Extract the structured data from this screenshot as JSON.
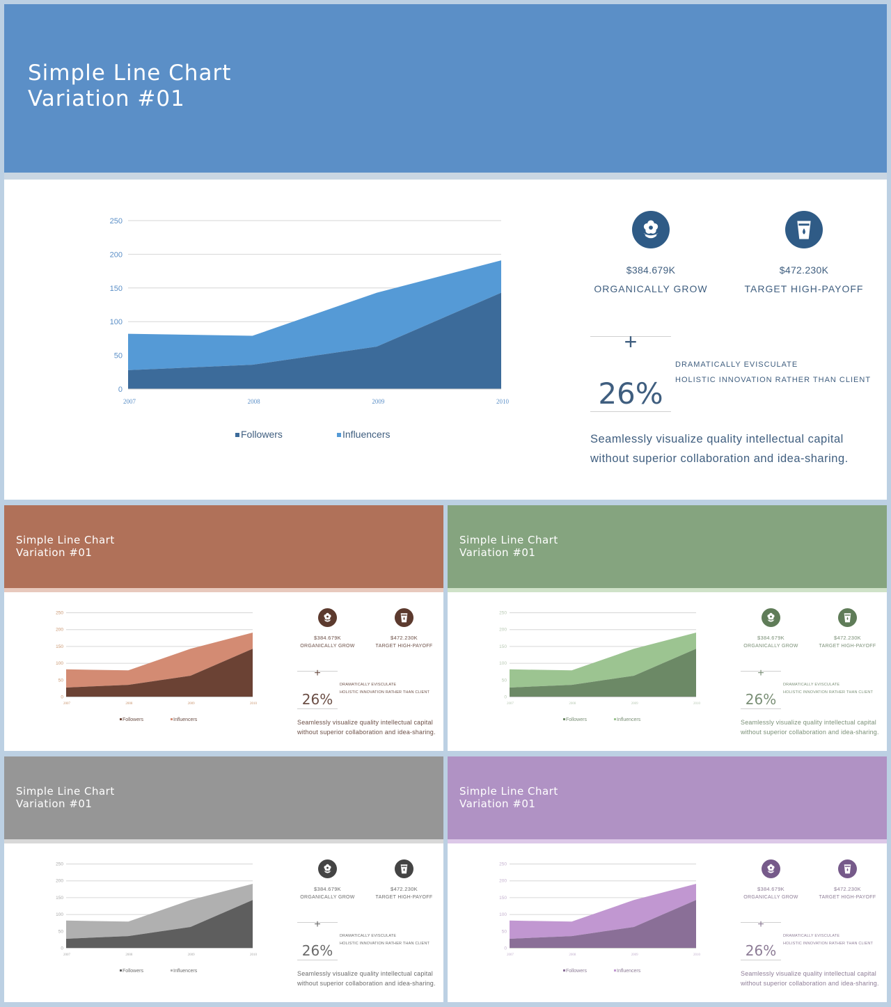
{
  "slides": [
    {
      "id": "main",
      "title_line1": "Simple Line Chart",
      "title_line2": "Variation #01",
      "colors": {
        "header": "#5b8fc7",
        "strip": "#c9d6e2",
        "dark": "#3c6b9a",
        "light": "#559ad6",
        "icon": "#2f5b86",
        "text": "#3f5e7f",
        "axis": "#5b8fc7"
      },
      "stat1_value": "$384.679K",
      "stat1_label": "ORGANICALLY GROW",
      "stat2_value": "$472.230K",
      "stat2_label": "TARGET HIGH-PAYOFF",
      "plus": "+",
      "percent": "26%",
      "sub1": "DRAMATICALLY EVISCULATE",
      "sub2": "HOLISTIC INNOVATION RATHER THAN CLIENT",
      "desc1": "Seamlessly visualize quality intellectual capital",
      "desc2": "without superior collaboration and idea-sharing.",
      "icons": [
        "flower-icon",
        "cup-icon"
      ]
    },
    {
      "id": "terracotta",
      "title_line1": "Simple Line Chart",
      "title_line2": "Variation #01",
      "colors": {
        "header": "#b07159",
        "strip": "#e8c9bd",
        "dark": "#6b4234",
        "light": "#d38b73",
        "icon": "#5c3a2e",
        "text": "#6b4e45",
        "axis": "#c9946d"
      },
      "stat1_value": "$384.679K",
      "stat1_label": "ORGANICALLY GROW",
      "stat2_value": "$472.230K",
      "stat2_label": "TARGET HIGH-PAYOFF",
      "plus": "+",
      "percent": "26%",
      "sub1": "DRAMATICALLY EVISCULATE",
      "sub2": "HOLISTIC INNOVATION RATHER THAN CLIENT",
      "desc1": "Seamlessly visualize quality intellectual capital",
      "desc2": "without superior collaboration and idea-sharing.",
      "icons": [
        "flower-icon",
        "cup-icon"
      ]
    },
    {
      "id": "green",
      "title_line1": "Simple Line Chart",
      "title_line2": "Variation #01",
      "colors": {
        "header": "#85a47f",
        "strip": "#cfe2c8",
        "dark": "#6c8966",
        "light": "#9cc491",
        "icon": "#5f7c58",
        "text": "#7a8f76",
        "axis": "#b8c9b3"
      },
      "stat1_value": "$384.679K",
      "stat1_label": "ORGANICALLY GROW",
      "stat2_value": "$472.230K",
      "stat2_label": "TARGET HIGH-PAYOFF",
      "plus": "+",
      "percent": "26%",
      "sub1": "DRAMATICALLY EVISCULATE",
      "sub2": "HOLISTIC INNOVATION RATHER THAN CLIENT",
      "desc1": "Seamlessly visualize quality intellectual capital",
      "desc2": "without superior collaboration and idea-sharing.",
      "icons": [
        "flower-icon",
        "cup-icon"
      ]
    },
    {
      "id": "gray",
      "title_line1": "Simple Line Chart",
      "title_line2": "Variation #01",
      "colors": {
        "header": "#969696",
        "strip": "#d8d8d8",
        "dark": "#5e5e5e",
        "light": "#b0b0b0",
        "icon": "#444444",
        "text": "#6a6a6a",
        "axis": "#a8a8a8"
      },
      "stat1_value": "$384.679K",
      "stat1_label": "ORGANICALLY GROW",
      "stat2_value": "$472.230K",
      "stat2_label": "TARGET HIGH-PAYOFF",
      "plus": "+",
      "percent": "26%",
      "sub1": "DRAMATICALLY EVISCULATE",
      "sub2": "HOLISTIC INNOVATION RATHER THAN CLIENT",
      "desc1": "Seamlessly visualize quality intellectual capital",
      "desc2": "without superior collaboration and idea-sharing.",
      "icons": [
        "flower-icon",
        "cup-icon"
      ]
    },
    {
      "id": "purple",
      "title_line1": "Simple Line Chart",
      "title_line2": "Variation #01",
      "colors": {
        "header": "#b092c4",
        "strip": "#dcc8e8",
        "dark": "#8a6f97",
        "light": "#c197d1",
        "icon": "#765a8a",
        "text": "#8d7c96",
        "axis": "#c4b1cf"
      },
      "stat1_value": "$384.679K",
      "stat1_label": "ORGANICALLY GROW",
      "stat2_value": "$472.230K",
      "stat2_label": "TARGET HIGH-PAYOFF",
      "plus": "+",
      "percent": "26%",
      "sub1": "DRAMATICALLY EVISCULATE",
      "sub2": "HOLISTIC INNOVATION RATHER THAN CLIENT",
      "desc1": "Seamlessly visualize quality intellectual capital",
      "desc2": "without superior collaboration and idea-sharing.",
      "icons": [
        "flower-icon",
        "cup-icon"
      ]
    }
  ],
  "chart_data": {
    "type": "area",
    "stacked": true,
    "categories": [
      "2007",
      "2008",
      "2009",
      "2010"
    ],
    "series": [
      {
        "name": "Followers",
        "values": [
          28,
          36,
          63,
          143
        ]
      },
      {
        "name": "Influencers",
        "values": [
          54,
          43,
          80,
          48
        ]
      }
    ],
    "y_ticks": [
      "0",
      "50",
      "100",
      "150",
      "200",
      "250"
    ],
    "ylim": [
      0,
      250
    ],
    "grid": true,
    "legend": "bottom"
  }
}
